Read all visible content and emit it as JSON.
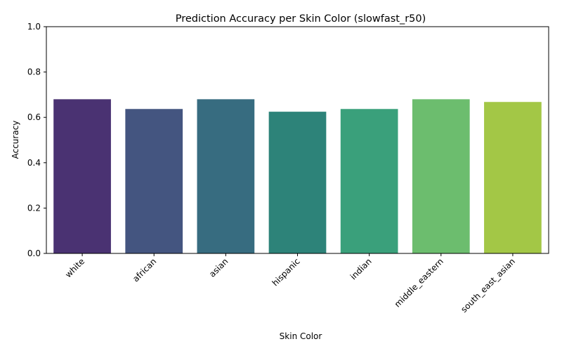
{
  "chart_data": {
    "type": "bar",
    "title": "Prediction Accuracy per Skin Color (slowfast_r50)",
    "xlabel": "Skin Color",
    "ylabel": "Accuracy",
    "ylim": [
      0,
      1
    ],
    "yticks": [
      "0.0",
      "0.2",
      "0.4",
      "0.6",
      "0.8",
      "1.0"
    ],
    "categories": [
      "white",
      "african",
      "asian",
      "hispanic",
      "indian",
      "middle_eastern",
      "south_east_asian"
    ],
    "values": [
      0.68,
      0.637,
      0.68,
      0.625,
      0.637,
      0.68,
      0.668
    ],
    "colors": [
      "#4a3272",
      "#445580",
      "#376c80",
      "#2d8379",
      "#3aa07b",
      "#6cbd6e",
      "#a3c746"
    ],
    "grid": false,
    "legend": "none"
  }
}
